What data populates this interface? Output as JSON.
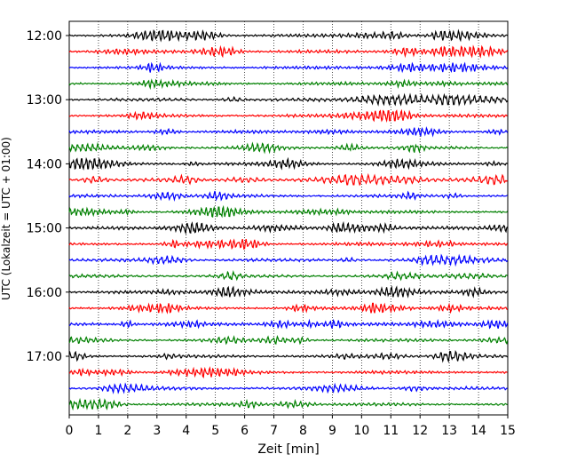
{
  "chart_data": {
    "type": "line",
    "title": "",
    "xlabel": "Zeit  [min]",
    "ylabel": "UTC (Lokalzeit = UTC + 01:00)",
    "xlim": [
      0,
      15
    ],
    "x_ticks": [
      "0",
      "1",
      "2",
      "3",
      "4",
      "5",
      "6",
      "7",
      "8",
      "9",
      "10",
      "11",
      "12",
      "13",
      "14",
      "15"
    ],
    "y_ticks": [
      "12:00",
      "13:00",
      "14:00",
      "15:00",
      "16:00",
      "17:00"
    ],
    "grid_x": true,
    "rows_per_hour": 4,
    "rows": 24,
    "row_colors": [
      "#000000",
      "#ff0000",
      "#0000ff",
      "#008000"
    ],
    "trace_description": "seismogram helicorder, 15-minute rows from 12:00 to 17:45 UTC"
  }
}
